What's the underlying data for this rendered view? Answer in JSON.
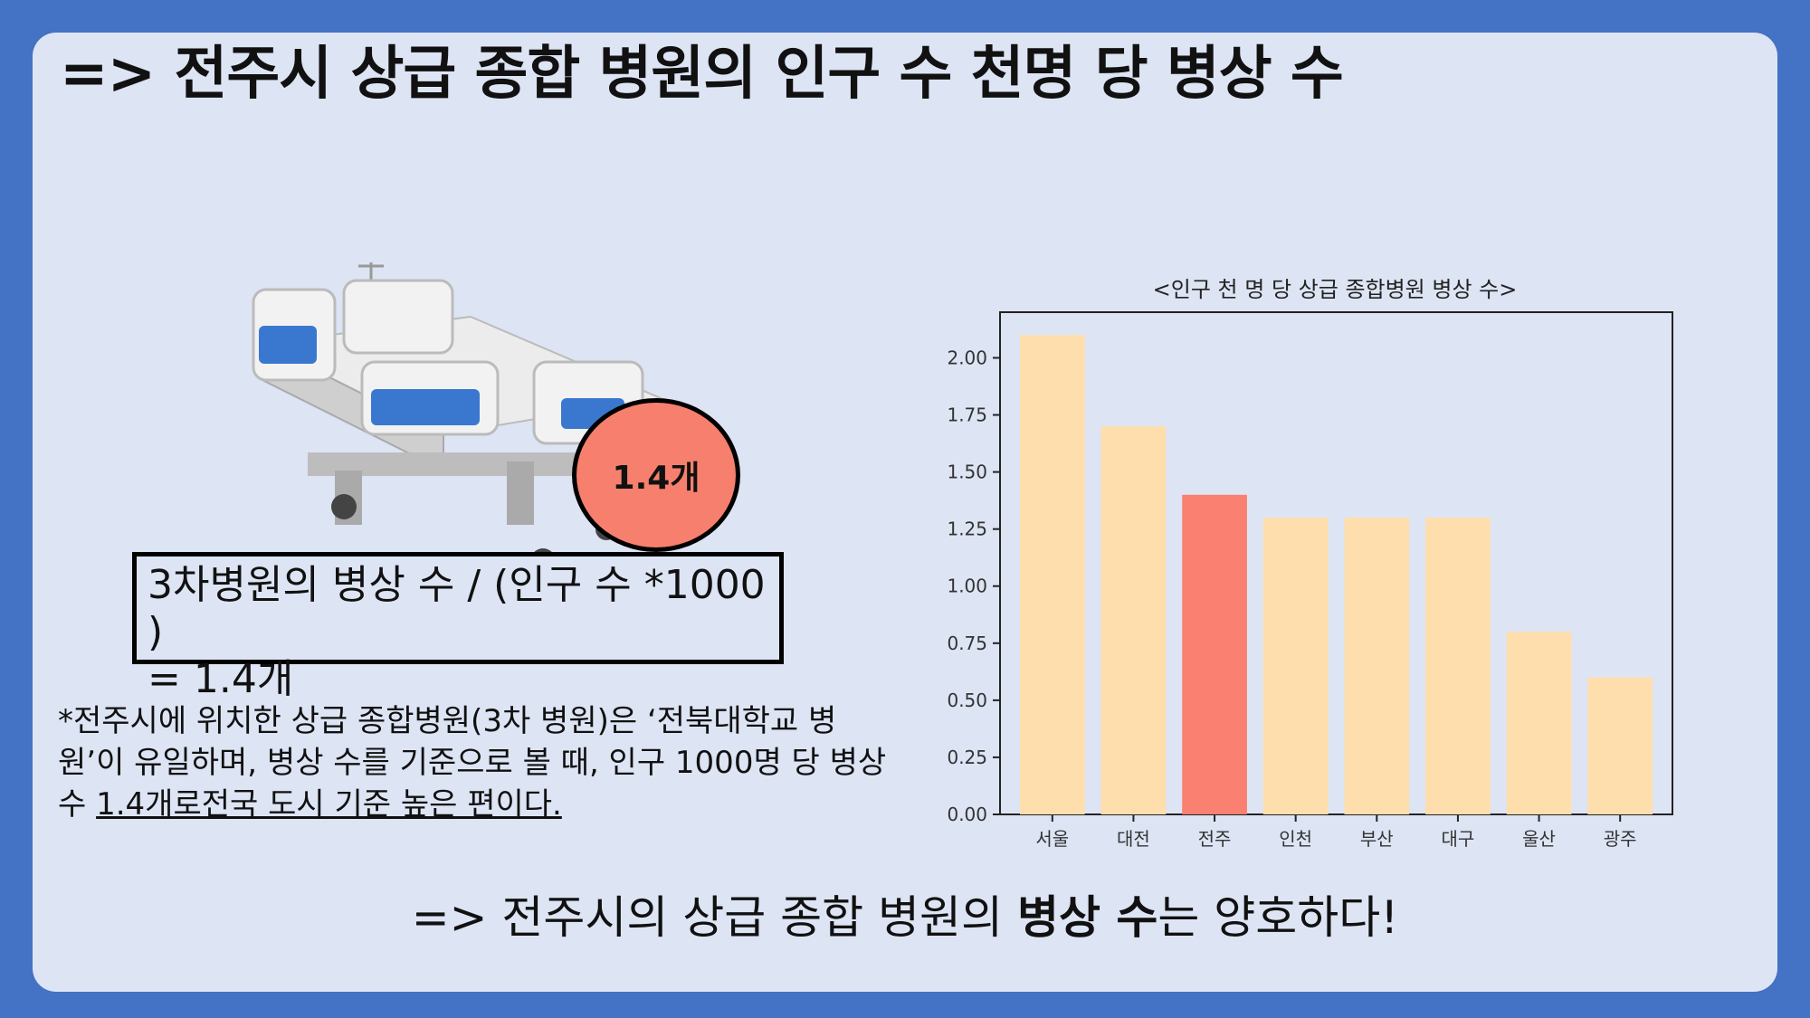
{
  "slide": {
    "title": "=> 전주시 상급 종합 병원의 인구 수 천명 당 병상 수",
    "bubble_label": "1.4개",
    "formula_line1": "3차병원의 병상 수 / (인구 수 *1000 )",
    "formula_line2": "= 1.4개",
    "note_plain": "*전주시에 위치한 상급 종합병원(3차 병원)은 ‘전북대학교 병원’이 유일하며, 병상 수를 기준으로 볼 때, 인구 1000명 당 병상 수 ",
    "note_underlined": "1.4개로전국 도시 기준 높은 편이다.",
    "conclusion_pre": "=> 전주시의 상급 종합 병원의 ",
    "conclusion_bold": "병상 수",
    "conclusion_post": "는 양호하다!"
  },
  "colors": {
    "background": "#4472c4",
    "card": "#dde4f4",
    "bar": "#ffdead",
    "highlight": "#fa8072",
    "bubble": "#f6806d"
  },
  "chart_data": {
    "type": "bar",
    "title": "<인구 천 명 당 상급 종합병원 병상 수>",
    "categories": [
      "서울",
      "대전",
      "전주",
      "인천",
      "부산",
      "대구",
      "울산",
      "광주"
    ],
    "values": [
      2.1,
      1.7,
      1.4,
      1.3,
      1.3,
      1.3,
      0.8,
      0.6
    ],
    "highlight_category": "전주",
    "ylim": [
      0,
      2.2
    ],
    "yticks": [
      "0.00",
      "0.25",
      "0.50",
      "0.75",
      "1.00",
      "1.25",
      "1.50",
      "1.75",
      "2.00"
    ],
    "xlabel": "",
    "ylabel": "",
    "grid": false
  }
}
